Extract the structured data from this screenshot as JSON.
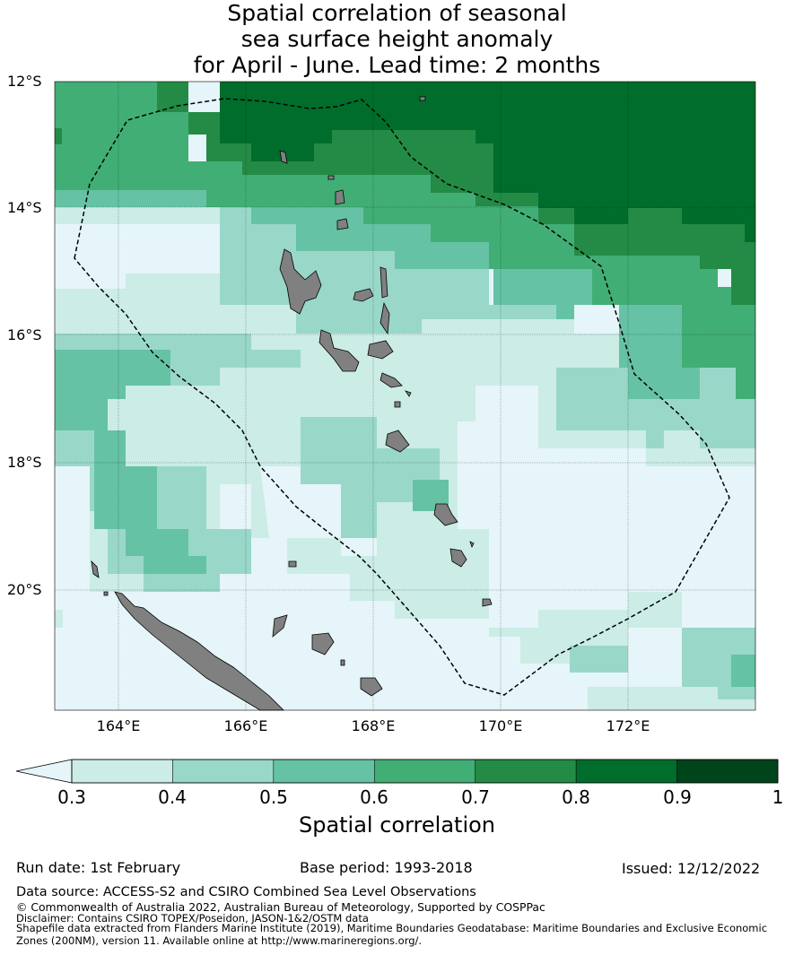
{
  "title": {
    "line1": "Spatial correlation of seasonal",
    "line2": "sea surface height anomaly",
    "line3": "for April - June. Lead time: 2 months"
  },
  "map": {
    "lat_labels": [
      "12°S",
      "14°S",
      "16°S",
      "18°S",
      "20°S"
    ],
    "lon_labels": [
      "164°E",
      "166°E",
      "168°E",
      "170°E",
      "172°E"
    ],
    "land_color": "#808080",
    "boundary_style": "dashed black EEZ outline (Vanuatu)"
  },
  "colorbar": {
    "label": "Spatial correlation",
    "ticks": [
      "0.3",
      "0.4",
      "0.5",
      "0.6",
      "0.7",
      "0.8",
      "0.9",
      "1"
    ],
    "extend_color": "#e5f5f9",
    "colors": [
      "#ccece6",
      "#99d8c9",
      "#66c2a4",
      "#41ae76",
      "#238b45",
      "#006d2c",
      "#00441b"
    ]
  },
  "footer": {
    "run_date": "Run date: 1st February",
    "base_period": "Base period: 1993-2018",
    "issued": "Issued: 12/12/2022",
    "data_source": "Data source: ACCESS-S2 and CSIRO Combined Sea Level Observations",
    "copyright": "© Commonwealth of Australia 2022, Australian Bureau of Meteorology, Supported by COSPPac",
    "disclaimer": "Disclaimer: Contains CSIRO TOPEX/Poseidon, JASON-1&2/OSTM data",
    "shapefile": "Shapefile data extracted from Flanders Marine Institute (2019), Maritime Boundaries Geodatabase: Maritime Boundaries and Exclusive Economic Zones (200NM), version 11. Available online at http://www.marineregions.org/."
  }
}
